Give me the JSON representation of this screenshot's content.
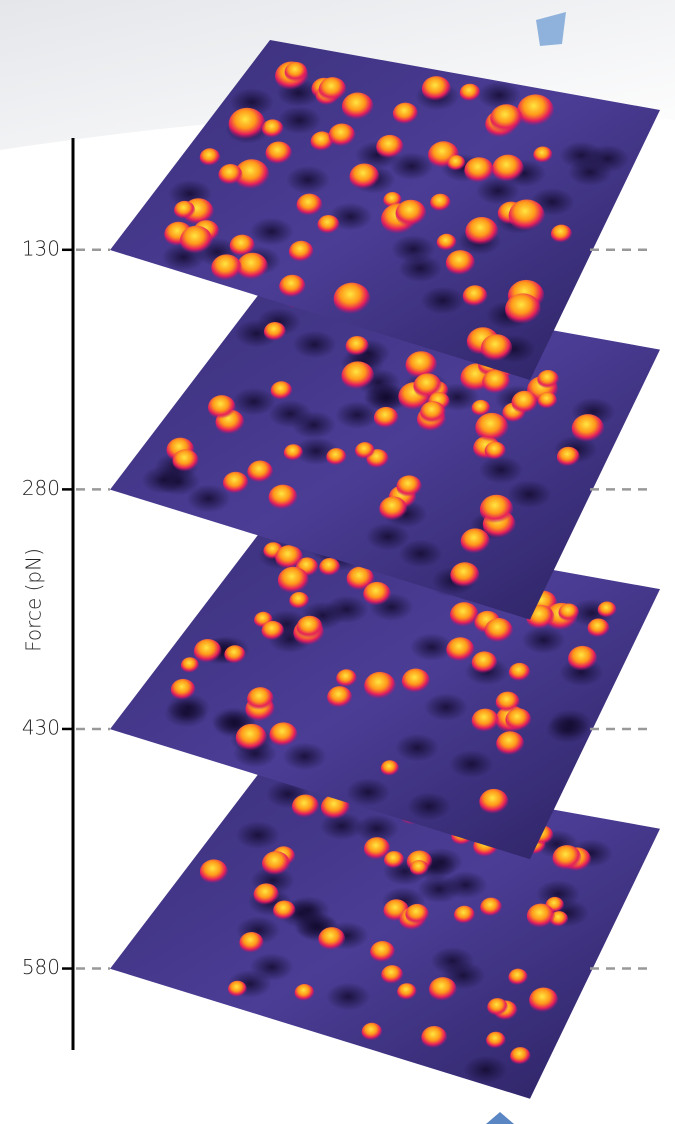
{
  "axis": {
    "label": "Force (pN)",
    "lim": [
      60,
      631
    ],
    "ticks": [
      130,
      280,
      430,
      580
    ]
  }
}
